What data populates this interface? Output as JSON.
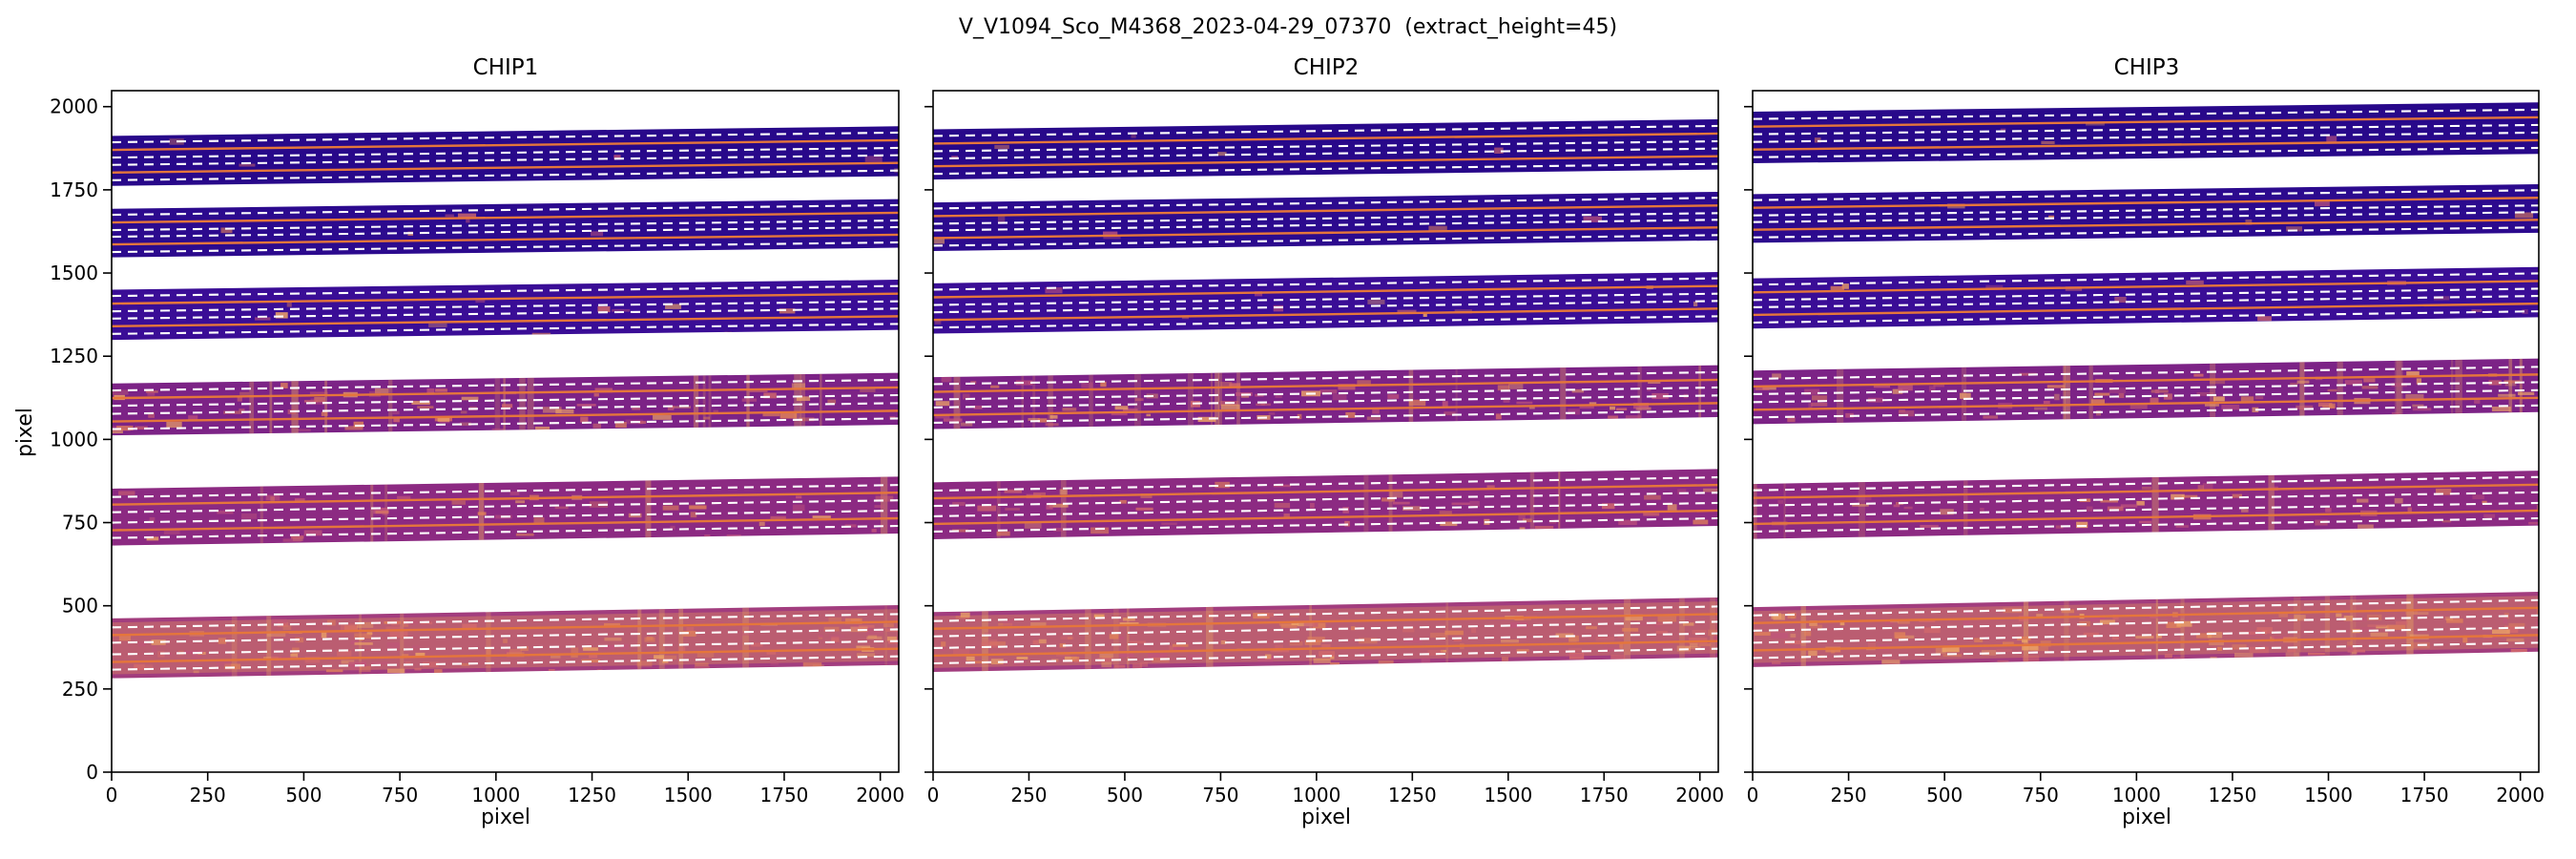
{
  "figure_title": "V_V1094_Sco_M4368_2023-04-29_07370  (extract_height=45)",
  "chart_data": {
    "type": "heatmap",
    "title": "V_V1094_Sco_M4368_2023-04-29_07370  (extract_height=45)",
    "extract_height": 45,
    "description": "Echelle spectral order traces on three detector chips; solid orange lines are trace centers, white dashed lines are extraction aperture limits (+/- extract_height/2).",
    "axes": {
      "xlabel": "pixel",
      "ylabel": "pixel",
      "xlim": [
        0,
        2048
      ],
      "ylim": [
        0,
        2048
      ],
      "xticks": [
        0,
        250,
        500,
        750,
        1000,
        1250,
        1500,
        1750,
        2000
      ],
      "yticks": [
        0,
        250,
        500,
        750,
        1000,
        1250,
        1500,
        1750,
        2000
      ]
    },
    "style": {
      "trace_color": "#e5763b",
      "aperture_line_color": "#ffffff",
      "half_aperture": 23,
      "band_colors": [
        "#28088a",
        "#2c0a8e",
        "#3a0d96",
        "#7c2386",
        "#8c2a82",
        "#a23d7e"
      ],
      "speckle_colors": [
        "#e0815a",
        "#eda466",
        "#d46a6c",
        "#c2557b"
      ],
      "wash_color": "#dd8a5f",
      "stripe_color": "#e39a63",
      "frame_color": "#000000"
    },
    "panels": [
      {
        "title": "CHIP1",
        "orders": [
          {
            "y0": 1762,
            "y1": 1912,
            "rise": 29,
            "traces": [
              1802,
              1870
            ],
            "speckle": 0.03,
            "stripes": 0
          },
          {
            "y0": 1547,
            "y1": 1693,
            "rise": 29,
            "traces": [
              1586,
              1652
            ],
            "speckle": 0.04,
            "stripes": 0
          },
          {
            "y0": 1299,
            "y1": 1450,
            "rise": 30,
            "traces": [
              1340,
              1408
            ],
            "speckle": 0.07,
            "stripes": 0
          },
          {
            "y0": 1012,
            "y1": 1168,
            "rise": 32,
            "traces": [
              1054,
              1124
            ],
            "speckle": 0.5,
            "stripes": 16
          },
          {
            "y0": 681,
            "y1": 852,
            "rise": 36,
            "traces": [
              727,
              804
            ],
            "speckle": 0.3,
            "stripes": 6
          },
          {
            "y0": 282,
            "y1": 462,
            "rise": 40,
            "traces": [
              331,
              412
            ],
            "speckle": 0.9,
            "stripes": 10
          }
        ]
      },
      {
        "title": "CHIP2",
        "orders": [
          {
            "y0": 1781,
            "y1": 1932,
            "rise": 30,
            "traces": [
              1821,
              1889
            ],
            "speckle": 0.03,
            "stripes": 0
          },
          {
            "y0": 1566,
            "y1": 1712,
            "rise": 32,
            "traces": [
              1605,
              1671
            ],
            "speckle": 0.04,
            "stripes": 0
          },
          {
            "y0": 1318,
            "y1": 1469,
            "rise": 34,
            "traces": [
              1359,
              1427
            ],
            "speckle": 0.07,
            "stripes": 0
          },
          {
            "y0": 1031,
            "y1": 1187,
            "rise": 36,
            "traces": [
              1073,
              1143
            ],
            "speckle": 0.5,
            "stripes": 16
          },
          {
            "y0": 700,
            "y1": 871,
            "rise": 40,
            "traces": [
              746,
              823
            ],
            "speckle": 0.32,
            "stripes": 6
          },
          {
            "y0": 301,
            "y1": 481,
            "rise": 44,
            "traces": [
              350,
              431
            ],
            "speckle": 0.9,
            "stripes": 10
          }
        ]
      },
      {
        "title": "CHIP3",
        "orders": [
          {
            "y0": 1830,
            "y1": 1985,
            "rise": 28,
            "traces": [
              1871,
              1940
            ],
            "speckle": 0.03,
            "stripes": 0
          },
          {
            "y0": 1591,
            "y1": 1737,
            "rise": 30,
            "traces": [
              1630,
              1696
            ],
            "speckle": 0.04,
            "stripes": 0
          },
          {
            "y0": 1333,
            "y1": 1484,
            "rise": 34,
            "traces": [
              1374,
              1442
            ],
            "speckle": 0.07,
            "stripes": 0
          },
          {
            "y0": 1046,
            "y1": 1207,
            "rise": 36,
            "traces": [
              1089,
              1159
            ],
            "speckle": 0.5,
            "stripes": 14
          },
          {
            "y0": 701,
            "y1": 866,
            "rise": 40,
            "traces": [
              746,
              824
            ],
            "speckle": 0.3,
            "stripes": 6
          },
          {
            "y0": 316,
            "y1": 496,
            "rise": 46,
            "traces": [
              366,
              448
            ],
            "speckle": 0.9,
            "stripes": 10
          }
        ]
      }
    ]
  }
}
